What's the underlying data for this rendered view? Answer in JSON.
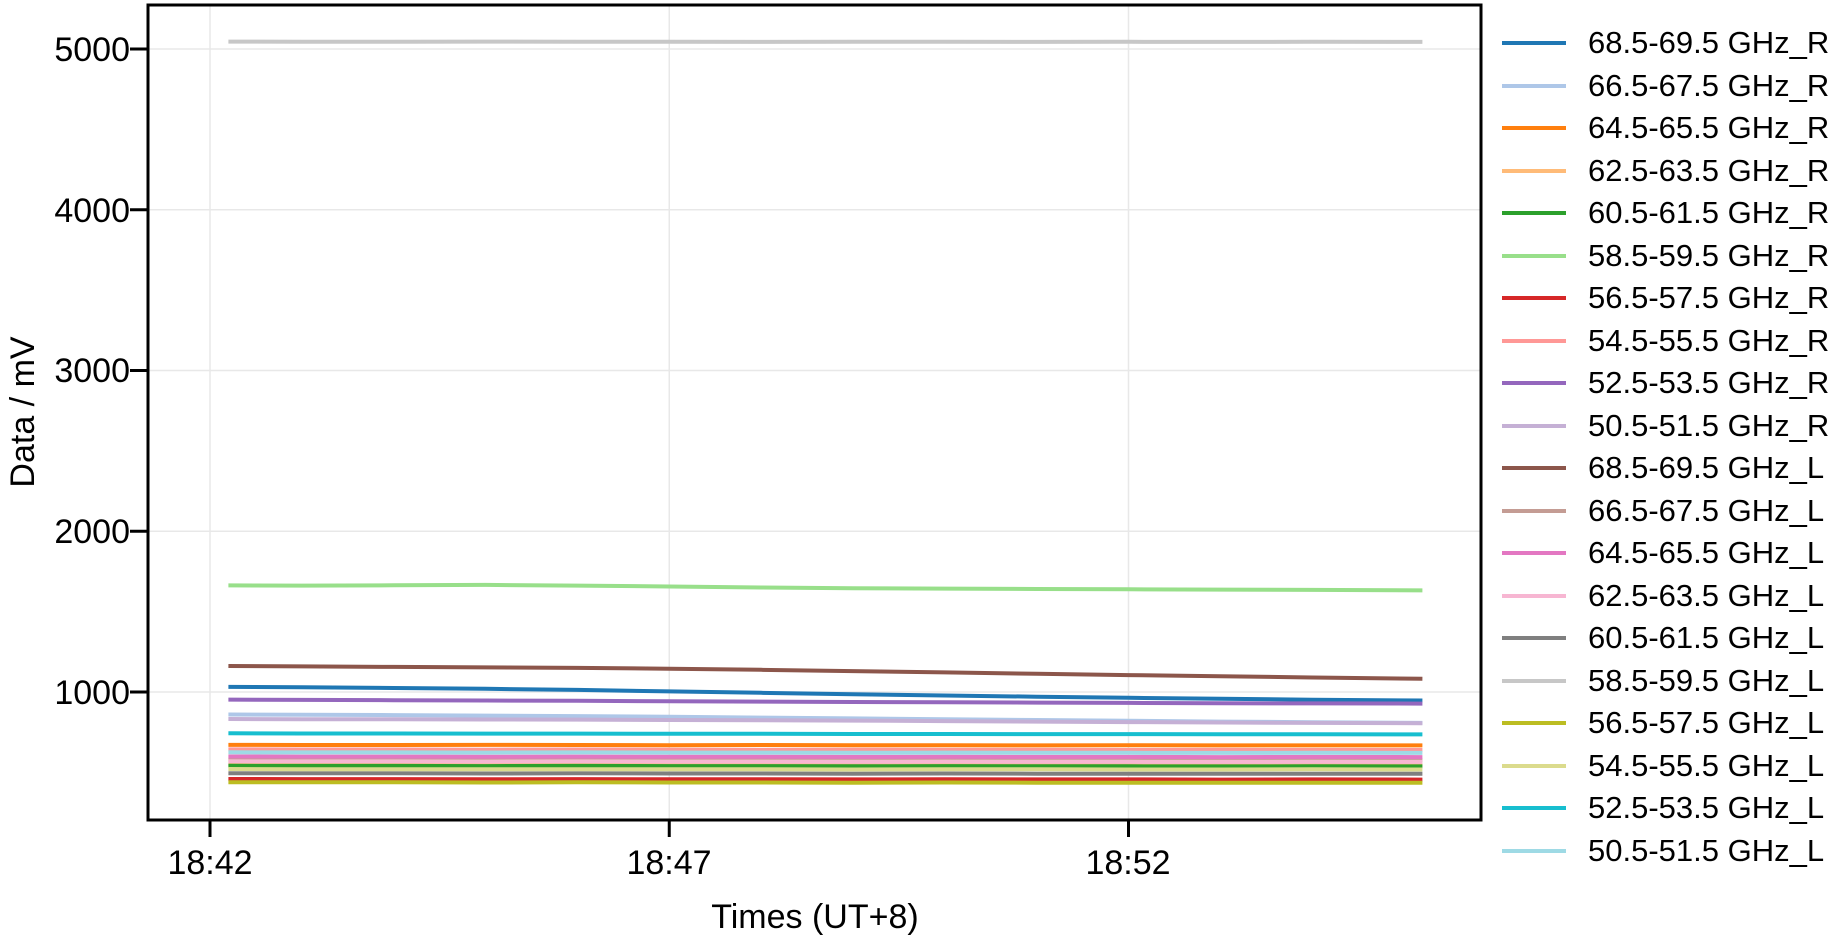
{
  "figure": {
    "background": "#ffffff",
    "grid_color": "#e8e8e8",
    "frame_color": "#000000"
  },
  "chart_data": {
    "type": "line",
    "title": "",
    "xlabel": "Times (UT+8)",
    "ylabel": "Data / mV",
    "x_tick_labels": [
      "18:42",
      "18:47",
      "18:52"
    ],
    "x_tick_minutes": [
      0,
      5,
      10
    ],
    "y_ticks": [
      1000,
      2000,
      3000,
      4000,
      5000
    ],
    "ylim": [
      200,
      5270
    ],
    "xlim_minutes": [
      -0.68,
      13.85
    ],
    "grid": true,
    "legend_position": "right",
    "x_minutes": [
      0.2,
      1,
      2,
      3,
      4,
      5,
      6,
      7,
      8,
      9,
      10,
      11,
      12,
      13.2
    ],
    "series": [
      {
        "name": "68.5-69.5 GHz_R",
        "color": "#1f77b4",
        "values": [
          1032,
          1029,
          1025,
          1020,
          1013,
          1004,
          995,
          986,
          978,
          971,
          964,
          958,
          952,
          947
        ]
      },
      {
        "name": "66.5-67.5 GHz_R",
        "color": "#aec7e8",
        "values": [
          860,
          858,
          856,
          853,
          850,
          846,
          841,
          836,
          831,
          826,
          821,
          816,
          812,
          808
        ]
      },
      {
        "name": "64.5-65.5 GHz_R",
        "color": "#ff7f0e",
        "values": [
          671,
          670,
          670,
          671,
          670,
          669,
          670,
          669,
          669,
          668,
          669,
          668,
          668,
          668
        ]
      },
      {
        "name": "62.5-63.5 GHz_R",
        "color": "#ffbb78",
        "values": [
          549,
          548,
          548,
          547,
          548,
          547,
          547,
          546,
          547,
          546,
          546,
          545,
          546,
          545
        ]
      },
      {
        "name": "60.5-61.5 GHz_R",
        "color": "#2ca02c",
        "values": [
          541,
          540,
          540,
          539,
          540,
          539,
          539,
          538,
          539,
          538,
          538,
          537,
          538,
          537
        ]
      },
      {
        "name": "58.5-59.5 GHz_R",
        "color": "#98df8a",
        "values": [
          1663,
          1662,
          1664,
          1666,
          1662,
          1656,
          1650,
          1646,
          1643,
          1641,
          1639,
          1637,
          1635,
          1632
        ]
      },
      {
        "name": "56.5-57.5 GHz_R",
        "color": "#d62728",
        "values": [
          459,
          458,
          458,
          457,
          458,
          457,
          457,
          456,
          457,
          456,
          456,
          455,
          456,
          455
        ]
      },
      {
        "name": "54.5-55.5 GHz_R",
        "color": "#ff9896",
        "values": [
          643,
          642,
          642,
          641,
          642,
          641,
          640,
          641,
          640,
          640,
          639,
          640,
          639,
          639
        ]
      },
      {
        "name": "52.5-53.5 GHz_R",
        "color": "#9467bd",
        "values": [
          953,
          951,
          949,
          947,
          945,
          942,
          940,
          938,
          936,
          934,
          932,
          930,
          929,
          928
        ]
      },
      {
        "name": "50.5-51.5 GHz_R",
        "color": "#c5b0d5",
        "values": [
          832,
          831,
          830,
          829,
          828,
          826,
          824,
          822,
          819,
          816,
          813,
          810,
          808,
          806
        ]
      },
      {
        "name": "68.5-69.5 GHz_L",
        "color": "#8c564b",
        "values": [
          1162,
          1159,
          1156,
          1153,
          1150,
          1145,
          1138,
          1130,
          1122,
          1113,
          1105,
          1098,
          1090,
          1082
        ]
      },
      {
        "name": "66.5-67.5 GHz_L",
        "color": "#c49c94",
        "values": [
          579,
          578,
          578,
          577,
          578,
          577,
          577,
          576,
          577,
          576,
          576,
          575,
          576,
          575
        ]
      },
      {
        "name": "64.5-65.5 GHz_L",
        "color": "#e377c2",
        "values": [
          599,
          598,
          598,
          597,
          598,
          597,
          597,
          596,
          597,
          596,
          596,
          595,
          596,
          595
        ]
      },
      {
        "name": "62.5-63.5 GHz_L",
        "color": "#f7b6d2",
        "values": [
          569,
          568,
          568,
          567,
          568,
          567,
          567,
          566,
          567,
          566,
          566,
          565,
          566,
          565
        ]
      },
      {
        "name": "60.5-61.5 GHz_L",
        "color": "#7f7f7f",
        "values": [
          495,
          494,
          494,
          493,
          494,
          493,
          493,
          492,
          493,
          492,
          492,
          491,
          492,
          491
        ]
      },
      {
        "name": "58.5-59.5 GHz_L",
        "color": "#c7c7c7",
        "values": [
          5046,
          5045,
          5045,
          5046,
          5045,
          5045,
          5044,
          5045,
          5045,
          5044,
          5045,
          5044,
          5045,
          5044
        ]
      },
      {
        "name": "56.5-57.5 GHz_L",
        "color": "#bcbd22",
        "values": [
          439,
          438,
          438,
          437,
          438,
          437,
          437,
          436,
          437,
          436,
          436,
          435,
          436,
          435
        ]
      },
      {
        "name": "54.5-55.5 GHz_L",
        "color": "#dbdb8d",
        "values": [
          521,
          520,
          520,
          519,
          520,
          519,
          519,
          518,
          520,
          519,
          518,
          518,
          519,
          518
        ]
      },
      {
        "name": "52.5-53.5 GHz_L",
        "color": "#17becf",
        "values": [
          743,
          742,
          742,
          741,
          741,
          740,
          740,
          739,
          739,
          738,
          738,
          737,
          737,
          736
        ]
      },
      {
        "name": "50.5-51.5 GHz_L",
        "color": "#9edae5",
        "values": [
          625,
          624,
          624,
          623,
          624,
          623,
          623,
          622,
          623,
          622,
          622,
          621,
          622,
          621
        ]
      }
    ]
  }
}
